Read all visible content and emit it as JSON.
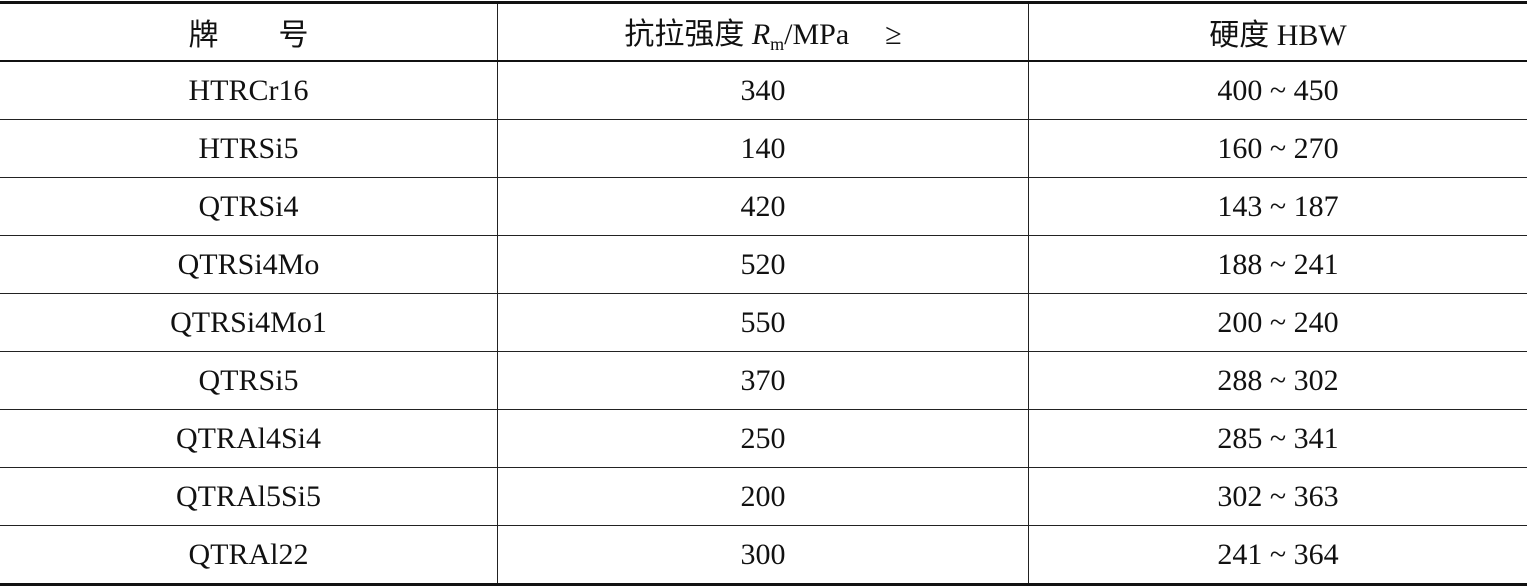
{
  "table": {
    "headers": {
      "grade_a": "牌",
      "grade_b": "号",
      "strength_prefix": "抗拉强度",
      "strength_symbol": "R",
      "strength_sub": "m",
      "strength_unit": "/MPa",
      "strength_cmp": "≥",
      "hardness": "硬度 HBW"
    },
    "rows": [
      {
        "grade": "HTRCr16",
        "strength": "340",
        "hardness": "400 ~ 450"
      },
      {
        "grade": "HTRSi5",
        "strength": "140",
        "hardness": "160 ~ 270"
      },
      {
        "grade": "QTRSi4",
        "strength": "420",
        "hardness": "143 ~ 187"
      },
      {
        "grade": "QTRSi4Mo",
        "strength": "520",
        "hardness": "188 ~ 241"
      },
      {
        "grade": "QTRSi4Mo1",
        "strength": "550",
        "hardness": "200 ~ 240"
      },
      {
        "grade": "QTRSi5",
        "strength": "370",
        "hardness": "288 ~ 302"
      },
      {
        "grade": "QTRAl4Si4",
        "strength": "250",
        "hardness": "285 ~ 341"
      },
      {
        "grade": "QTRAl5Si5",
        "strength": "200",
        "hardness": "302 ~ 363"
      },
      {
        "grade": "QTRAl22",
        "strength": "300",
        "hardness": "241 ~ 364"
      }
    ]
  }
}
